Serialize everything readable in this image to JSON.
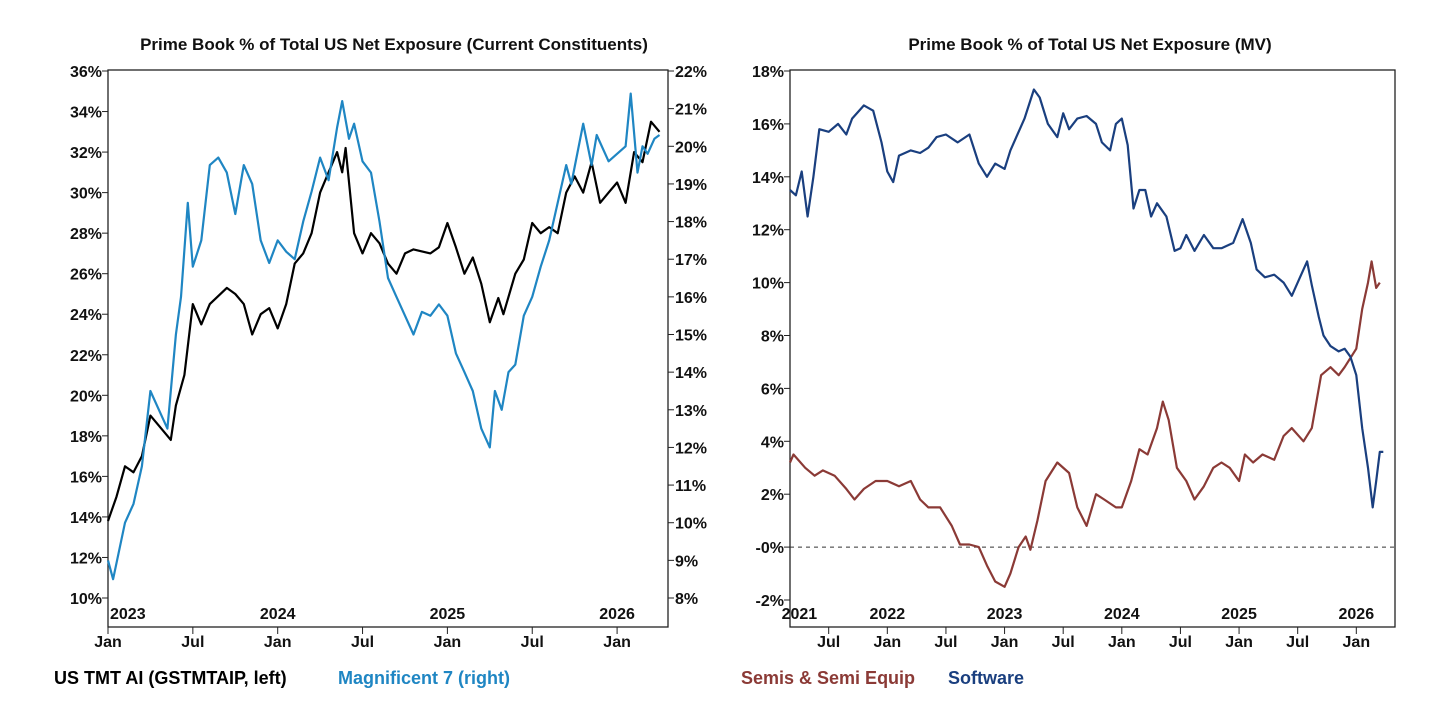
{
  "chart_data": [
    {
      "type": "line",
      "title": "Prime Book % of Total US Net Exposure (Current Constituents)",
      "x_unit": "fractional year",
      "xlim": [
        2023.0,
        2026.3
      ],
      "x_ticks": [
        {
          "x": 2023.0,
          "label": "Jan"
        },
        {
          "x": 2023.5,
          "label": "Jul"
        },
        {
          "x": 2024.0,
          "label": "Jan"
        },
        {
          "x": 2024.5,
          "label": "Jul"
        },
        {
          "x": 2025.0,
          "label": "Jan"
        },
        {
          "x": 2025.5,
          "label": "Jul"
        },
        {
          "x": 2026.0,
          "label": "Jan"
        }
      ],
      "year_labels": [
        {
          "x": 2023.0,
          "label": "2023"
        },
        {
          "x": 2024.0,
          "label": "2024"
        },
        {
          "x": 2025.0,
          "label": "2025"
        },
        {
          "x": 2026.0,
          "label": "2026"
        }
      ],
      "y_left": {
        "lim": [
          10,
          36
        ],
        "ticks": [
          10,
          12,
          14,
          16,
          18,
          20,
          22,
          24,
          26,
          28,
          30,
          32,
          34,
          36
        ],
        "suffix": "%"
      },
      "y_right": {
        "lim": [
          8,
          22
        ],
        "ticks": [
          8,
          9,
          10,
          11,
          12,
          13,
          14,
          15,
          16,
          17,
          18,
          19,
          20,
          21,
          22
        ],
        "suffix": "%"
      },
      "grid": false,
      "legend_placement": "bottom",
      "series": [
        {
          "name": "US TMT AI (GSTMTAIP, left)",
          "axis": "left",
          "color": "#000000",
          "x": [
            2023.0,
            2023.05,
            2023.1,
            2023.15,
            2023.2,
            2023.25,
            2023.3,
            2023.37,
            2023.4,
            2023.45,
            2023.5,
            2023.55,
            2023.6,
            2023.7,
            2023.75,
            2023.8,
            2023.85,
            2023.9,
            2023.95,
            2024.0,
            2024.05,
            2024.1,
            2024.15,
            2024.2,
            2024.25,
            2024.3,
            2024.35,
            2024.38,
            2024.4,
            2024.45,
            2024.5,
            2024.55,
            2024.6,
            2024.65,
            2024.7,
            2024.75,
            2024.8,
            2024.9,
            2024.95,
            2025.0,
            2025.05,
            2025.1,
            2025.15,
            2025.2,
            2025.25,
            2025.3,
            2025.33,
            2025.4,
            2025.45,
            2025.5,
            2025.55,
            2025.6,
            2025.65,
            2025.7,
            2025.75,
            2025.8,
            2025.85,
            2025.9,
            2025.95,
            2026.0,
            2026.05,
            2026.1,
            2026.15,
            2026.2,
            2026.25
          ],
          "y": [
            13.8,
            15,
            16.5,
            16.2,
            17,
            19,
            18.5,
            17.8,
            19.5,
            21,
            24.5,
            23.5,
            24.5,
            25.3,
            25,
            24.5,
            23,
            24,
            24.3,
            23.3,
            24.5,
            26.5,
            27,
            28,
            30,
            31,
            32,
            31,
            32.2,
            28,
            27,
            28,
            27.5,
            26.5,
            26,
            27,
            27.2,
            27.0,
            27.3,
            28.5,
            27.3,
            26,
            26.8,
            25.5,
            23.6,
            24.8,
            24,
            26,
            26.7,
            28.5,
            28,
            28.3,
            28,
            30,
            30.8,
            30,
            31.5,
            29.5,
            30,
            30.5,
            29.5,
            32,
            31.5,
            33.5,
            33
          ]
        },
        {
          "name": "Magnificent 7 (right)",
          "axis": "right",
          "color": "#1f86c3",
          "x": [
            2023.0,
            2023.03,
            2023.1,
            2023.15,
            2023.2,
            2023.25,
            2023.3,
            2023.35,
            2023.4,
            2023.43,
            2023.47,
            2023.5,
            2023.55,
            2023.6,
            2023.65,
            2023.7,
            2023.75,
            2023.8,
            2023.85,
            2023.9,
            2023.95,
            2024.0,
            2024.05,
            2024.1,
            2024.15,
            2024.2,
            2024.25,
            2024.3,
            2024.35,
            2024.38,
            2024.42,
            2024.45,
            2024.5,
            2024.55,
            2024.6,
            2024.65,
            2024.7,
            2024.75,
            2024.8,
            2024.85,
            2024.9,
            2024.95,
            2025.0,
            2025.05,
            2025.1,
            2025.15,
            2025.2,
            2025.25,
            2025.28,
            2025.32,
            2025.36,
            2025.4,
            2025.45,
            2025.5,
            2025.55,
            2025.6,
            2025.65,
            2025.7,
            2025.73,
            2025.8,
            2025.85,
            2025.88,
            2025.95,
            2026.0,
            2026.05,
            2026.08,
            2026.12,
            2026.15,
            2026.18,
            2026.22,
            2026.25
          ],
          "y": [
            9,
            8.5,
            10,
            10.5,
            11.5,
            13.5,
            13,
            12.5,
            15,
            16,
            18.5,
            16.8,
            17.5,
            19.5,
            19.7,
            19.3,
            18.2,
            19.5,
            19,
            17.5,
            16.9,
            17.5,
            17.2,
            17,
            18,
            18.8,
            19.7,
            19.1,
            20.5,
            21.2,
            20.2,
            20.6,
            19.6,
            19.3,
            18,
            16.5,
            16,
            15.5,
            15,
            15.6,
            15.5,
            15.8,
            15.5,
            14.5,
            14,
            13.5,
            12.5,
            12,
            13.5,
            13,
            14,
            14.2,
            15.5,
            16,
            16.8,
            17.5,
            18.5,
            19.5,
            19,
            20.6,
            19.5,
            20.3,
            19.6,
            19.8,
            20,
            21.4,
            19.3,
            20,
            19.8,
            20.2,
            20.3
          ]
        }
      ]
    },
    {
      "type": "line",
      "title": "Prime Book % of Total US Net Exposure (MV)",
      "x_unit": "fractional year",
      "xlim": [
        2021.17,
        2026.33
      ],
      "x_ticks": [
        {
          "x": 2021.5,
          "label": "Jul"
        },
        {
          "x": 2022.0,
          "label": "Jan"
        },
        {
          "x": 2022.5,
          "label": "Jul"
        },
        {
          "x": 2023.0,
          "label": "Jan"
        },
        {
          "x": 2023.5,
          "label": "Jul"
        },
        {
          "x": 2024.0,
          "label": "Jan"
        },
        {
          "x": 2024.5,
          "label": "Jul"
        },
        {
          "x": 2025.0,
          "label": "Jan"
        },
        {
          "x": 2025.5,
          "label": "Jul"
        },
        {
          "x": 2026.0,
          "label": "Jan"
        }
      ],
      "year_labels": [
        {
          "x": 2021.25,
          "label": "2021"
        },
        {
          "x": 2022.0,
          "label": "2022"
        },
        {
          "x": 2023.0,
          "label": "2023"
        },
        {
          "x": 2024.0,
          "label": "2024"
        },
        {
          "x": 2025.0,
          "label": "2025"
        },
        {
          "x": 2026.0,
          "label": "2026"
        }
      ],
      "y_left": {
        "lim": [
          -3,
          18
        ],
        "ticks": [
          -2,
          0,
          2,
          4,
          6,
          8,
          10,
          12,
          14,
          16,
          18
        ],
        "tick_labels": [
          "-2%",
          "-0%",
          "2%",
          "4%",
          "6%",
          "8%",
          "10%",
          "12%",
          "14%",
          "16%",
          "18%"
        ]
      },
      "reference_line": {
        "y": 0,
        "style": "dashed"
      },
      "grid": false,
      "legend_placement": "bottom",
      "series": [
        {
          "name": "Semis & Semi Equip",
          "color": "#8b3a36",
          "x": [
            2021.17,
            2021.2,
            2021.3,
            2021.38,
            2021.45,
            2021.55,
            2021.65,
            2021.72,
            2021.8,
            2021.9,
            2022.0,
            2022.1,
            2022.2,
            2022.28,
            2022.35,
            2022.45,
            2022.55,
            2022.62,
            2022.7,
            2022.78,
            2022.85,
            2022.92,
            2023.0,
            2023.05,
            2023.12,
            2023.18,
            2023.22,
            2023.28,
            2023.35,
            2023.45,
            2023.55,
            2023.62,
            2023.7,
            2023.78,
            2023.85,
            2023.95,
            2024.0,
            2024.08,
            2024.15,
            2024.22,
            2024.3,
            2024.35,
            2024.4,
            2024.47,
            2024.55,
            2024.62,
            2024.7,
            2024.78,
            2024.85,
            2024.92,
            2025.0,
            2025.05,
            2025.12,
            2025.2,
            2025.3,
            2025.38,
            2025.45,
            2025.55,
            2025.62,
            2025.7,
            2025.78,
            2025.85,
            2025.9,
            2026.0,
            2026.05,
            2026.1,
            2026.13,
            2026.17,
            2026.2
          ],
          "y": [
            3.2,
            3.5,
            3,
            2.7,
            2.9,
            2.7,
            2.2,
            1.8,
            2.2,
            2.5,
            2.5,
            2.3,
            2.5,
            1.8,
            1.5,
            1.5,
            0.8,
            0.1,
            0.1,
            0,
            -0.7,
            -1.3,
            -1.5,
            -1,
            0,
            0.4,
            -0.1,
            1,
            2.5,
            3.2,
            2.8,
            1.5,
            0.8,
            2,
            1.8,
            1.5,
            1.5,
            2.5,
            3.7,
            3.5,
            4.5,
            5.5,
            4.8,
            3,
            2.5,
            1.8,
            2.3,
            3,
            3.2,
            3,
            2.5,
            3.5,
            3.2,
            3.5,
            3.3,
            4.2,
            4.5,
            4,
            4.5,
            6.5,
            6.8,
            6.5,
            6.8,
            7.5,
            9,
            10,
            10.8,
            9.8,
            10
          ]
        },
        {
          "name": "Software",
          "color": "#1a3f7f",
          "x": [
            2021.17,
            2021.22,
            2021.27,
            2021.32,
            2021.37,
            2021.42,
            2021.5,
            2021.58,
            2021.65,
            2021.7,
            2021.8,
            2021.88,
            2021.95,
            2022.0,
            2022.05,
            2022.1,
            2022.2,
            2022.28,
            2022.35,
            2022.42,
            2022.5,
            2022.6,
            2022.7,
            2022.78,
            2022.85,
            2022.92,
            2023.0,
            2023.05,
            2023.1,
            2023.17,
            2023.25,
            2023.3,
            2023.37,
            2023.45,
            2023.5,
            2023.55,
            2023.62,
            2023.7,
            2023.78,
            2023.83,
            2023.9,
            2023.95,
            2024.0,
            2024.05,
            2024.1,
            2024.15,
            2024.2,
            2024.25,
            2024.3,
            2024.38,
            2024.45,
            2024.5,
            2024.55,
            2024.62,
            2024.7,
            2024.78,
            2024.85,
            2024.95,
            2025.03,
            2025.1,
            2025.15,
            2025.22,
            2025.3,
            2025.38,
            2025.45,
            2025.52,
            2025.58,
            2025.62,
            2025.68,
            2025.72,
            2025.78,
            2025.85,
            2025.9,
            2025.95,
            2026.0,
            2026.05,
            2026.1,
            2026.14,
            2026.17,
            2026.2,
            2026.23
          ],
          "y": [
            13.5,
            13.3,
            14.2,
            12.5,
            14,
            15.8,
            15.7,
            16,
            15.6,
            16.2,
            16.7,
            16.5,
            15.3,
            14.2,
            13.8,
            14.8,
            15,
            14.9,
            15.1,
            15.5,
            15.6,
            15.3,
            15.6,
            14.5,
            14,
            14.5,
            14.3,
            15,
            15.5,
            16.2,
            17.3,
            17,
            16,
            15.5,
            16.4,
            15.8,
            16.2,
            16.3,
            16,
            15.3,
            15,
            16,
            16.2,
            15.2,
            12.8,
            13.5,
            13.5,
            12.5,
            13,
            12.5,
            11.2,
            11.3,
            11.8,
            11.2,
            11.8,
            11.3,
            11.3,
            11.5,
            12.4,
            11.5,
            10.5,
            10.2,
            10.3,
            10,
            9.5,
            10.2,
            10.8,
            9.9,
            8.7,
            8,
            7.6,
            7.4,
            7.5,
            7.2,
            6.5,
            4.5,
            3,
            1.5,
            2.5,
            3.6,
            3.6
          ]
        }
      ]
    }
  ]
}
